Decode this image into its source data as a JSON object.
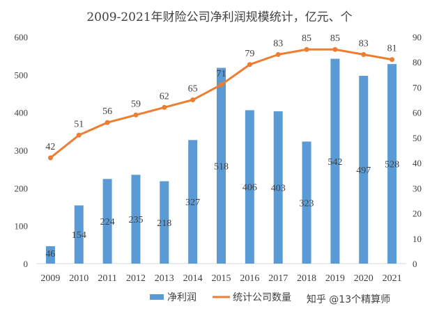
{
  "page": {
    "credit": "知乎 @13个精算师"
  },
  "chart_data": {
    "type": "bar",
    "title": "2009-2021年财险公司净利润规模统计，亿元、个",
    "categories": [
      "2009",
      "2010",
      "2011",
      "2012",
      "2013",
      "2014",
      "2015",
      "2016",
      "2017",
      "2018",
      "2019",
      "2020",
      "2021"
    ],
    "series": [
      {
        "name": "净利润",
        "type": "bar",
        "axis": "left",
        "color": "#5b9bd5",
        "values": [
          46,
          154,
          224,
          235,
          218,
          327,
          518,
          406,
          403,
          323,
          542,
          497,
          528
        ]
      },
      {
        "name": "统计公司数量",
        "type": "line",
        "axis": "right",
        "color": "#ed7d31",
        "values": [
          42,
          51,
          56,
          59,
          62,
          65,
          71,
          79,
          83,
          85,
          85,
          83,
          81
        ]
      }
    ],
    "ylim": [
      0,
      600
    ],
    "y2lim": [
      0,
      90
    ],
    "yticks": [
      "0",
      "100",
      "200",
      "300",
      "400",
      "500",
      "600"
    ],
    "y2ticks": [
      "0",
      "10",
      "20",
      "30",
      "40",
      "50",
      "60",
      "70",
      "80",
      "90"
    ],
    "grid": false,
    "legend_position": "bottom-center"
  }
}
